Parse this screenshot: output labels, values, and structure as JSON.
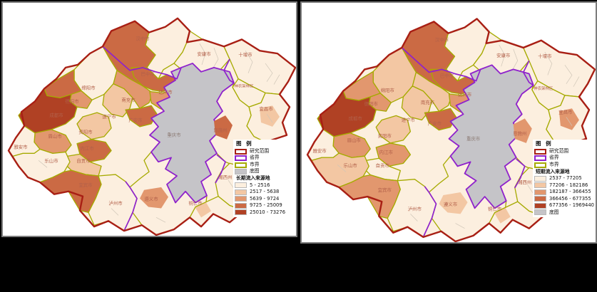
{
  "figure": {
    "background": "#000000"
  },
  "shared": {
    "colors": {
      "study_boundary": "#a81f14",
      "province_boundary": "#8f22cc",
      "city_boundary": "#a6aa00",
      "basemap_fill": "#c5c4c8",
      "county_line": "#cfc6b8",
      "label_text": "#b2604a",
      "basemap_label_text": "#8c7b74",
      "panel_border": "#7d7d7d",
      "panel_bg": "#ffffff"
    },
    "legend_common": {
      "title": "图 例",
      "boundary_items": [
        {
          "id": "study-extent",
          "label": "研究范围",
          "style": "stroke-study"
        },
        {
          "id": "province-border",
          "label": "省界",
          "style": "stroke-province"
        },
        {
          "id": "city-border",
          "label": "市界",
          "style": "stroke-city"
        }
      ],
      "basemap_item": {
        "id": "basemap",
        "label": "底图"
      }
    },
    "cities": [
      {
        "id": "hanzhong",
        "label": "汉中市"
      },
      {
        "id": "ankang",
        "label": "安康市"
      },
      {
        "id": "shiyan",
        "label": "十堰市"
      },
      {
        "id": "shennongjia",
        "label": "神农架林区"
      },
      {
        "id": "yichang",
        "label": "宜昌市"
      },
      {
        "id": "enshi",
        "label": "恩施州"
      },
      {
        "id": "xiangxi",
        "label": "湘西州"
      },
      {
        "id": "tongren",
        "label": "铜仁市"
      },
      {
        "id": "bazhong",
        "label": "巴中市"
      },
      {
        "id": "dazhou",
        "label": "达州市"
      },
      {
        "id": "nanchong",
        "label": "南充市"
      },
      {
        "id": "guangan",
        "label": "广安市"
      },
      {
        "id": "mianyang",
        "label": "绵阳市"
      },
      {
        "id": "deyang",
        "label": "德阳市"
      },
      {
        "id": "chengdu",
        "label": "成都市"
      },
      {
        "id": "suining",
        "label": "遂宁市"
      },
      {
        "id": "ziyang",
        "label": "资阳市"
      },
      {
        "id": "meishan",
        "label": "眉山市"
      },
      {
        "id": "yaan",
        "label": "雅安市"
      },
      {
        "id": "leshan",
        "label": "乐山市"
      },
      {
        "id": "neijiang",
        "label": "内江市"
      },
      {
        "id": "zigong",
        "label": "自贡市"
      },
      {
        "id": "yibin",
        "label": "宜宾市"
      },
      {
        "id": "luzhou",
        "label": "泸州市"
      },
      {
        "id": "zunyi",
        "label": "遵义市"
      },
      {
        "id": "chongqing",
        "label": "重庆市"
      }
    ]
  },
  "panels": [
    {
      "name": "long-term-inflow-map",
      "legend": {
        "classes_title": "长期流入来源地",
        "basemap_position": "before_classes",
        "classes": [
          {
            "label": "5 - 2516",
            "color": "#fcefdf"
          },
          {
            "label": "2517 - 5638",
            "color": "#f3c7a3"
          },
          {
            "label": "5639 - 9724",
            "color": "#e2976e"
          },
          {
            "label": "9725 - 25009",
            "color": "#cb6a44"
          },
          {
            "label": "25010 - 73276",
            "color": "#b04124"
          }
        ]
      },
      "region_classes": {
        "hanzhong_w": 3,
        "hanzhong_e": 0,
        "ankang": 0,
        "shiyan": 0,
        "shennongjia": 0,
        "yichang": 0,
        "yichang_blob": 1,
        "enshi": 0,
        "enshi_blob": 3,
        "xiangxi": 0,
        "tongren": 0,
        "tongren_blob": 1,
        "zunyi": 0,
        "zunyi_blob": 2,
        "mianyang": 0,
        "mianyang_dark": 3,
        "deyang": 2,
        "chengdu": 4,
        "suining": 1,
        "nanchong": 2,
        "bazhong": 3,
        "dazhou": 2,
        "guangan": 3,
        "ziyang": 1,
        "neijiang": 3,
        "zigong": 1,
        "meishan": 2,
        "yaan": 0,
        "leshan": 0,
        "yibin": 3,
        "luzhou": 0
      }
    },
    {
      "name": "short-term-inflow-map",
      "legend": {
        "classes_title": "短期流入来源地",
        "basemap_position": "after_classes",
        "classes": [
          {
            "label": "2537 - 77205",
            "color": "#fcefdf"
          },
          {
            "label": "77206 - 182186",
            "color": "#f3c7a3"
          },
          {
            "label": "182187 - 366455",
            "color": "#e2976e"
          },
          {
            "label": "366456 - 677355",
            "color": "#cb6a44"
          },
          {
            "label": "677356 - 1969440",
            "color": "#b04124"
          }
        ]
      },
      "region_classes": {
        "hanzhong_w": 3,
        "hanzhong_e": 0,
        "ankang": 0,
        "shiyan": 0,
        "shennongjia": 0,
        "yichang": 0,
        "yichang_blob": 2,
        "enshi": 0,
        "enshi_blob": 2,
        "xiangxi": 0,
        "tongren": 0,
        "tongren_blob": 1,
        "zunyi": 0,
        "zunyi_blob": 1,
        "mianyang": 1,
        "mianyang_dark": 2,
        "deyang": 2,
        "chengdu": 4,
        "suining": 1,
        "nanchong": 1,
        "bazhong": 3,
        "dazhou": 2,
        "guangan": 3,
        "ziyang": 1,
        "neijiang": 2,
        "zigong": 0,
        "meishan": 2,
        "yaan": 0,
        "leshan": 1,
        "yibin": 2,
        "luzhou": 0
      }
    }
  ]
}
